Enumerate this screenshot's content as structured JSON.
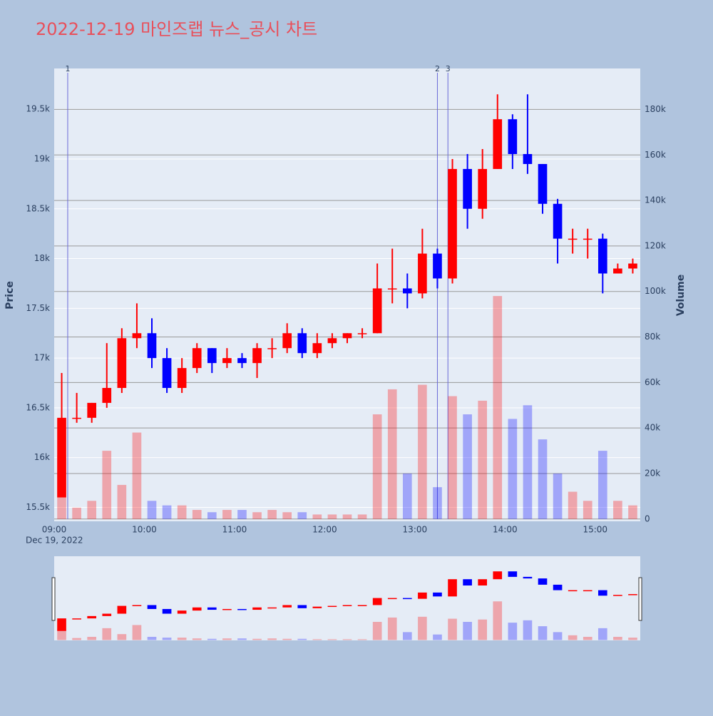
{
  "chart_data": {
    "type": "candlestick",
    "title": "2022-12-19 마인즈랩 뉴스_공시 차트",
    "ylabel": "Price",
    "y2label": "Volume",
    "x_date_label": "Dec 19, 2022",
    "increasing_color": "#ff0000",
    "decreasing_color": "#0000ff",
    "xlim": [
      "09:00",
      "15:30"
    ],
    "xticks": [
      "09:00",
      "10:00",
      "11:00",
      "12:00",
      "13:00",
      "14:00",
      "15:00"
    ],
    "ylim": [
      15360,
      19910
    ],
    "yticks": [
      {
        "value": 15500,
        "label": "15.5k"
      },
      {
        "value": 16000,
        "label": "16k"
      },
      {
        "value": 16500,
        "label": "16.5k"
      },
      {
        "value": 17000,
        "label": "17k"
      },
      {
        "value": 17500,
        "label": "17.5k"
      },
      {
        "value": 18000,
        "label": "18k"
      },
      {
        "value": 18500,
        "label": "18.5k"
      },
      {
        "value": 19000,
        "label": "19k"
      },
      {
        "value": 19500,
        "label": "19.5k"
      }
    ],
    "y2lim": [
      -1000,
      198000
    ],
    "y2ticks": [
      0,
      {
        "value": 20000,
        "label": "20k"
      },
      {
        "value": 40000,
        "label": "40k"
      },
      {
        "value": 60000,
        "label": "60k"
      },
      {
        "value": 80000,
        "label": "80k"
      },
      {
        "value": 100000,
        "label": "100k"
      },
      {
        "value": 120000,
        "label": "120k"
      },
      {
        "value": 140000,
        "label": "140k"
      },
      {
        "value": 160000,
        "label": "160k"
      },
      {
        "value": 180000,
        "label": "180k"
      }
    ],
    "markers": [
      {
        "x": "09:09",
        "label": "1"
      },
      {
        "x": "13:15",
        "label": "2"
      },
      {
        "x": "13:22",
        "label": "3"
      }
    ],
    "x": [
      "09:00",
      "09:10",
      "09:20",
      "09:30",
      "09:40",
      "09:50",
      "10:00",
      "10:10",
      "10:20",
      "10:30",
      "10:40",
      "10:50",
      "11:00",
      "11:10",
      "11:20",
      "11:30",
      "11:40",
      "11:50",
      "12:00",
      "12:10",
      "12:20",
      "12:30",
      "12:40",
      "12:50",
      "13:00",
      "13:10",
      "13:20",
      "13:30",
      "13:40",
      "13:50",
      "14:00",
      "14:10",
      "14:20",
      "14:30",
      "14:40",
      "14:50",
      "15:00",
      "15:10",
      "15:20"
    ],
    "open": [
      15600,
      16400,
      16400,
      16550,
      16700,
      17200,
      17250,
      17000,
      16700,
      16900,
      17100,
      16950,
      17000,
      16950,
      17100,
      17100,
      17250,
      17050,
      17150,
      17200,
      17250,
      17250,
      17700,
      17700,
      17650,
      18050,
      17800,
      18900,
      18500,
      18900,
      19400,
      19050,
      18950,
      18550,
      18200,
      18200,
      18200,
      17850,
      17900
    ],
    "high": [
      16850,
      16650,
      16550,
      17150,
      17300,
      17550,
      17400,
      17100,
      17000,
      17150,
      17100,
      17100,
      17050,
      17150,
      17200,
      17350,
      17300,
      17250,
      17250,
      17250,
      17300,
      17950,
      18100,
      17850,
      18300,
      18100,
      19000,
      19050,
      19100,
      19650,
      19450,
      19650,
      18950,
      18600,
      18300,
      18300,
      18250,
      17950,
      18000
    ],
    "low": [
      15600,
      16350,
      16350,
      16500,
      16650,
      17100,
      16900,
      16650,
      16650,
      16850,
      16850,
      16900,
      16900,
      16800,
      17000,
      17050,
      17000,
      17000,
      17100,
      17150,
      17200,
      17250,
      17550,
      17500,
      17600,
      17700,
      17750,
      18300,
      18400,
      18900,
      18900,
      18850,
      18450,
      17950,
      18050,
      18000,
      17650,
      17850,
      17850
    ],
    "close": [
      16400,
      16400,
      16550,
      16700,
      17200,
      17250,
      17000,
      16700,
      16900,
      17100,
      16950,
      17000,
      16950,
      17100,
      17100,
      17250,
      17050,
      17150,
      17200,
      17250,
      17250,
      17700,
      17700,
      17650,
      18050,
      17800,
      18900,
      18500,
      18900,
      19400,
      19050,
      18950,
      18550,
      18200,
      18200,
      18200,
      17850,
      17900,
      17950
    ],
    "volume": [
      28000,
      5000,
      8000,
      30000,
      15000,
      38000,
      8000,
      6000,
      6000,
      4000,
      3000,
      4000,
      4000,
      3000,
      4000,
      3000,
      3000,
      2000,
      2000,
      2000,
      2000,
      46000,
      57000,
      20000,
      59000,
      14000,
      54000,
      46000,
      52000,
      98000,
      44000,
      50000,
      35000,
      20000,
      12000,
      8000,
      30000,
      8000,
      6000
    ]
  }
}
